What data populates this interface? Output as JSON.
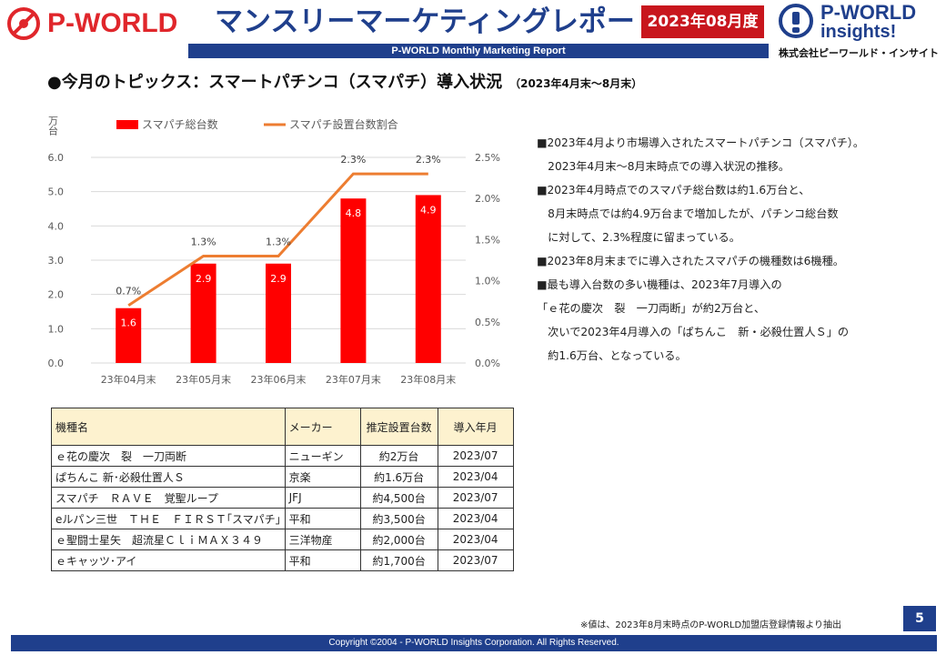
{
  "header": {
    "logo_left_text": "P-WORLD",
    "title": "マンスリーマーケティングレポート",
    "date_badge": "2023年08月度",
    "subtitle": "P-WORLD Monthly Marketing Report",
    "logo_right_line1": "P-WORLD",
    "logo_right_line2": "insights!",
    "logo_right_company": "株式会社ピーワールド・インサイト"
  },
  "section": {
    "title": "●今月のトピックス：スマートパチンコ（スマパチ）導入状況",
    "period": "（2023年4月末～8月末）"
  },
  "chart_data": {
    "type": "bar",
    "categories": [
      "23年04月末",
      "23年05月末",
      "23年06月末",
      "23年07月末",
      "23年08月末"
    ],
    "series": [
      {
        "name": "スマパチ総台数",
        "type": "bar",
        "axis": "left",
        "values": [
          1.6,
          2.9,
          2.9,
          4.8,
          4.9
        ],
        "labels": [
          "1.6",
          "2.9",
          "2.9",
          "4.8",
          "4.9"
        ],
        "color": "#ff0000"
      },
      {
        "name": "スマパチ設置台数割合",
        "type": "line",
        "axis": "right",
        "values": [
          0.7,
          1.3,
          1.3,
          2.3,
          2.3
        ],
        "labels": [
          "0.7%",
          "1.3%",
          "1.3%",
          "2.3%",
          "2.3%"
        ],
        "color": "#ed7d31"
      }
    ],
    "ylabel": "万台",
    "ylim": [
      0,
      6.0
    ],
    "yticks": [
      "0.0",
      "1.0",
      "2.0",
      "3.0",
      "4.0",
      "5.0",
      "6.0"
    ],
    "y2lim": [
      0,
      2.5
    ],
    "y2ticks": [
      "0.0%",
      "0.5%",
      "1.0%",
      "1.5%",
      "2.0%",
      "2.5%"
    ],
    "grid": true,
    "legend": "top"
  },
  "notes": [
    "■2023年4月より市場導入されたスマートパチンコ（スマパチ）。",
    "　2023年4月末～8月末時点での導入状況の推移。",
    "■2023年4月時点でのスマパチ総台数は約1.6万台と、",
    "　8月末時点では約4.9万台まで増加したが、パチンコ総台数",
    "　に対して、2.3%程度に留まっている。",
    "■2023年8月末までに導入されたスマパチの機種数は6機種。",
    "■最も導入台数の多い機種は、2023年7月導入の",
    "「ｅ花の慶次　裂　一刀両断」が約2万台と、",
    "　次いで2023年4月導入の「ぱちんこ　新・必殺仕置人Ｓ」の",
    "　約1.6万台、となっている。"
  ],
  "table": {
    "headers": [
      "機種名",
      "メーカー",
      "推定設置台数",
      "導入年月"
    ],
    "rows": [
      [
        "ｅ花の慶次　裂　一刀両断",
        "ニューギン",
        "約2万台",
        "2023/07"
      ],
      [
        "ぱちんこ 新･必殺仕置人Ｓ",
        "京楽",
        "約1.6万台",
        "2023/04"
      ],
      [
        "スマパチ　ＲＡＶＥ　覚聖ループ",
        "JFJ",
        "約4,500台",
        "2023/07"
      ],
      [
        "eルパン三世　ＴＨＥ　ＦＩＲＳＴ｢スマパチ｣",
        "平和",
        "約3,500台",
        "2023/04"
      ],
      [
        "ｅ聖闘士星矢　超流星ＣｌｉＭＡＸ３４９",
        "三洋物産",
        "約2,000台",
        "2023/04"
      ],
      [
        "ｅキャッツ･アイ",
        "平和",
        "約1,700台",
        "2023/07"
      ]
    ]
  },
  "footnote": "※値は、2023年8月末時点のP-WORLD加盟店登録情報より抽出",
  "page_number": "5",
  "footer": "Copyright ©2004 -  P-WORLD Insights Corporation. All Rights Reserved.",
  "colors": {
    "brand_red": "#e0262b",
    "brand_blue": "#1f3f8c",
    "bar": "#ff0000",
    "line": "#ed7d31"
  }
}
